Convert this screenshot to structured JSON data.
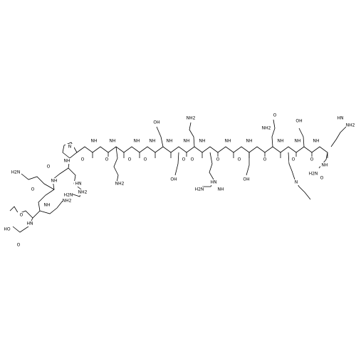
{
  "labels": [
    "HO",
    "O",
    "HN",
    "O",
    "NH",
    "NH2",
    "O",
    "NH",
    "H2N",
    "O",
    "NH",
    "HN",
    "NH2",
    "H2N",
    "N",
    "O",
    "NH",
    "O",
    "NH",
    "NH2",
    "O",
    "NH",
    "O",
    "NH",
    "OH",
    "NH",
    "O",
    "OH",
    "NH",
    "NH2",
    "O",
    "NH",
    "HN",
    "H2N",
    "NH",
    "O",
    "NH",
    "O",
    "OH",
    "NH",
    "O",
    "O",
    "NH2",
    "NH",
    "N",
    "O",
    "NH",
    "OH",
    "O",
    "NH",
    "NH",
    "NH2",
    "HN",
    "H2N",
    "O"
  ]
}
